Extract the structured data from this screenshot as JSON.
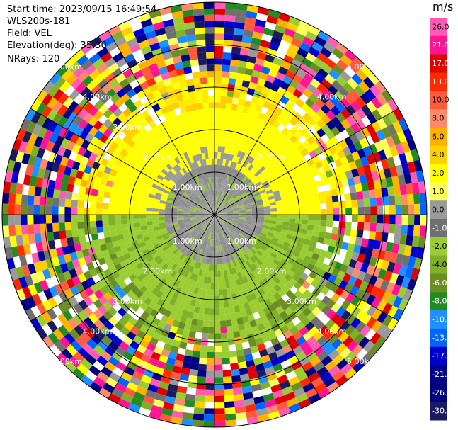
{
  "header": {
    "start_time": "Start time: 2023/09/15 16:49:54",
    "station": "WLS200s-181",
    "field": "Field: VEL",
    "elevation": "Elevation(deg): 35.30",
    "nrays": "NRays: 120"
  },
  "colorbar": {
    "unit": "m/s",
    "levels": [
      {
        "label": "26.0",
        "color": "#ff5ab4"
      },
      {
        "label": "21.0",
        "color": "#ff1493"
      },
      {
        "label": "17.0",
        "color": "#e00000"
      },
      {
        "label": "13.0",
        "color": "#ff2a00"
      },
      {
        "label": "10.0",
        "color": "#ff5a3c"
      },
      {
        "label": "8.0",
        "color": "#ff8a6a"
      },
      {
        "label": "6.0",
        "color": "#ffb000"
      },
      {
        "label": "4.0",
        "color": "#ffd000"
      },
      {
        "label": "2.0",
        "color": "#ffff00"
      },
      {
        "label": "1.0",
        "color": "#ffff5a"
      },
      {
        "label": "0.0",
        "color": "#9a9a9a"
      },
      {
        "label": "-1.0",
        "color": "#707070"
      },
      {
        "label": "-2.0",
        "color": "#9acd32"
      },
      {
        "label": "-4.0",
        "color": "#7fb028"
      },
      {
        "label": "-6.0",
        "color": "#6b8e23"
      },
      {
        "label": "-8.0",
        "color": "#228b22"
      },
      {
        "label": "-10.0",
        "color": "#1e90ff"
      },
      {
        "label": "-13.0",
        "color": "#0064ff"
      },
      {
        "label": "-17.0",
        "color": "#0000cd"
      },
      {
        "label": "-21.0",
        "color": "#00008b"
      },
      {
        "label": "-26.0",
        "color": "#000080"
      },
      {
        "label": "-30.0",
        "color": "#1a1a60"
      }
    ]
  },
  "range_rings": {
    "labels": [
      "1.00km",
      "2.00km",
      "3.00km",
      "4.00km",
      "5.00km"
    ]
  }
}
